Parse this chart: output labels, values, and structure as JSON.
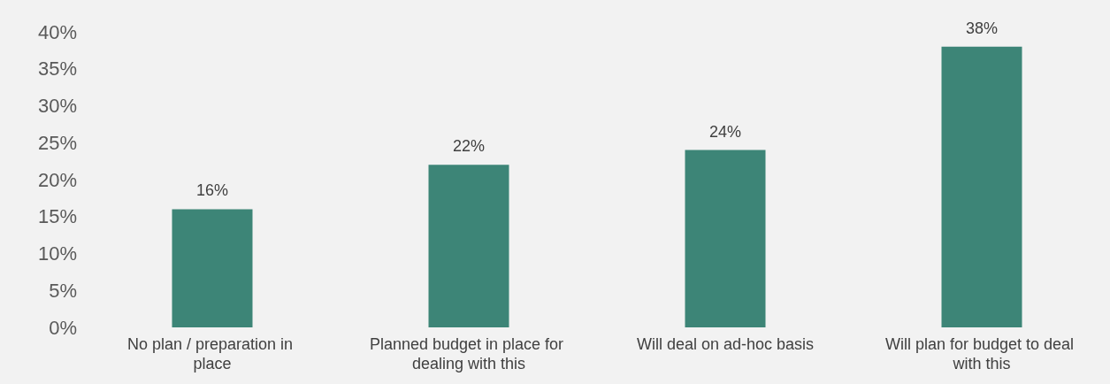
{
  "chart_data": {
    "type": "bar",
    "categories": [
      "No plan / preparation in place",
      "Planned budget in place for dealing with this",
      "Will deal on ad-hoc basis",
      "Will plan for budget to deal with this"
    ],
    "values": [
      16,
      22,
      24,
      38
    ],
    "value_labels": [
      "16%",
      "22%",
      "24%",
      "38%"
    ],
    "color": "#3d8577",
    "ylim": [
      0,
      40
    ],
    "yticks": [
      {
        "value": 0,
        "label": "0%"
      },
      {
        "value": 5,
        "label": "5%"
      },
      {
        "value": 10,
        "label": "10%"
      },
      {
        "value": 15,
        "label": "15%"
      },
      {
        "value": 20,
        "label": "20%"
      },
      {
        "value": 25,
        "label": "25%"
      },
      {
        "value": 30,
        "label": "30%"
      },
      {
        "value": 35,
        "label": "35%"
      },
      {
        "value": 40,
        "label": "40%"
      }
    ],
    "grid": false
  }
}
